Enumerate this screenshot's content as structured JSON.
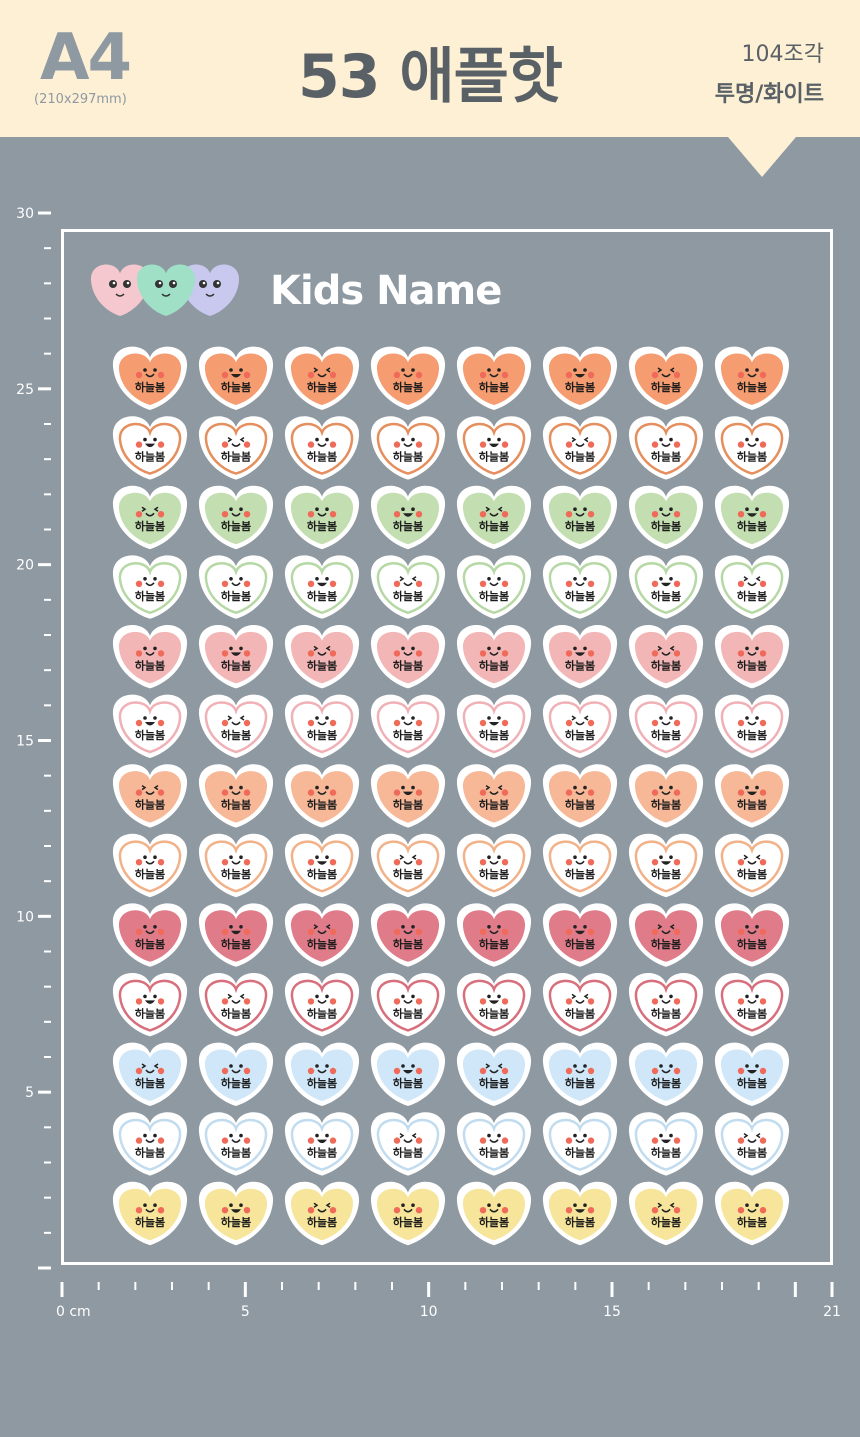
{
  "header": {
    "paper_size": "A4",
    "paper_dims": "(210x297mm)",
    "title": "53 애플핫",
    "piece_count": "104조각",
    "material": "투명/화이트",
    "bg_color": "#fdf0d5"
  },
  "sheet": {
    "heading": "Kids Name",
    "sticker_name": "하늘봄",
    "rows": [
      {
        "style": "filled",
        "color": "#f59c70"
      },
      {
        "style": "outline",
        "color": "#e58f5e"
      },
      {
        "style": "filled",
        "color": "#c3deb0"
      },
      {
        "style": "outline",
        "color": "#b6d8a4"
      },
      {
        "style": "filled",
        "color": "#f2b6b6"
      },
      {
        "style": "outline",
        "color": "#f0b1b6"
      },
      {
        "style": "filled",
        "color": "#f7b898"
      },
      {
        "style": "outline",
        "color": "#f2b289"
      },
      {
        "style": "filled",
        "color": "#e07c8a"
      },
      {
        "style": "outline",
        "color": "#d86f7c"
      },
      {
        "style": "filled",
        "color": "#cfe7f8"
      },
      {
        "style": "outline",
        "color": "#c2dcef"
      },
      {
        "style": "filled",
        "color": "#f6e59a"
      }
    ],
    "columns": 8
  },
  "ruler": {
    "vertical_labels": [
      "30",
      "25",
      "20",
      "15",
      "10",
      "5"
    ],
    "horizontal_labels": [
      "0 cm",
      "5",
      "10",
      "15",
      "21"
    ]
  },
  "logo_hearts": [
    "#f5c8cf",
    "#9fe0c7",
    "#c9c9ef"
  ]
}
